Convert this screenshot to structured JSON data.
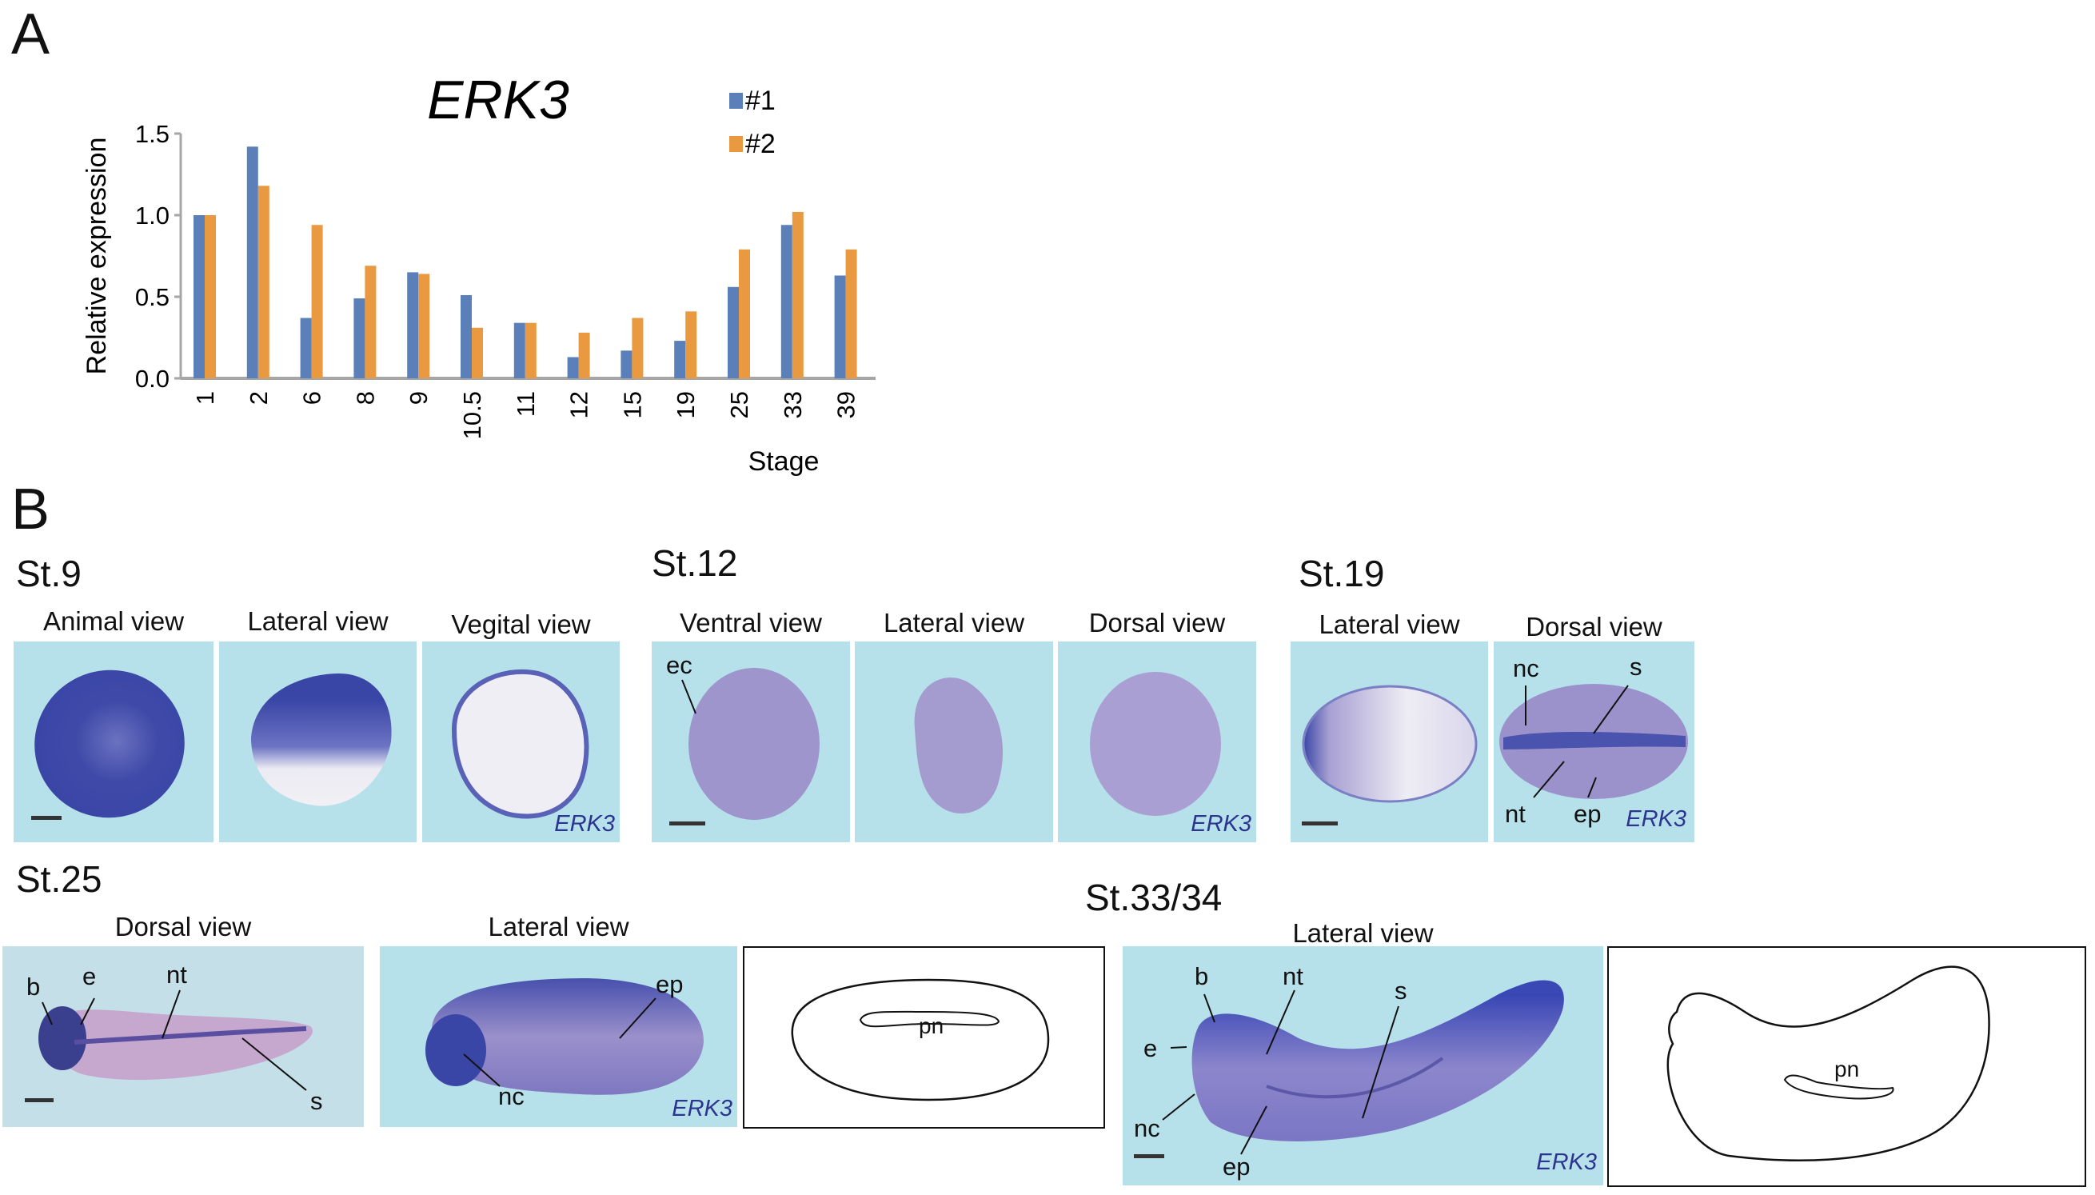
{
  "panel_a": {
    "letter": "A"
  },
  "panel_b": {
    "letter": "B"
  },
  "chart_data": {
    "type": "bar",
    "title": "ERK3",
    "xlabel": "Stage",
    "ylabel": "Relative expression",
    "ylim": [
      0,
      1.5
    ],
    "yticks": [
      "0.0",
      "0.5",
      "1.0",
      "1.5"
    ],
    "categories": [
      "1",
      "2",
      "6",
      "8",
      "9",
      "10.5",
      "11",
      "12",
      "15",
      "19",
      "25",
      "33",
      "39"
    ],
    "series": [
      {
        "name": "#1",
        "color": "#5b80b9",
        "values": [
          1.0,
          1.42,
          0.37,
          0.49,
          0.65,
          0.51,
          0.34,
          0.13,
          0.17,
          0.23,
          0.56,
          0.94,
          0.63
        ]
      },
      {
        "name": "#2",
        "color": "#e99a41",
        "values": [
          1.0,
          1.18,
          0.94,
          0.69,
          0.64,
          0.31,
          0.34,
          0.28,
          0.37,
          0.41,
          0.79,
          1.02,
          0.79
        ]
      }
    ],
    "legend": "top-right",
    "grid": false
  },
  "st9": {
    "stage": "St.9",
    "views": [
      "Animal view",
      "Lateral view",
      "Vegital view"
    ],
    "gene": "ERK3"
  },
  "st12": {
    "stage": "St.12",
    "views": [
      "Ventral view",
      "Lateral view",
      "Dorsal view"
    ],
    "gene": "ERK3",
    "labels": {
      "ec": "ec"
    }
  },
  "st19": {
    "stage": "St.19",
    "views": [
      "Lateral view",
      "Dorsal view"
    ],
    "gene": "ERK3",
    "labels": {
      "nc": "nc",
      "s": "s",
      "nt": "nt",
      "ep": "ep"
    }
  },
  "st25": {
    "stage": "St.25",
    "views": [
      "Dorsal view",
      "Lateral view"
    ],
    "gene": "ERK3",
    "dorsal_labels": {
      "b": "b",
      "e": "e",
      "nt": "nt",
      "s": "s"
    },
    "lateral_labels": {
      "ep": "ep",
      "nc": "nc"
    },
    "diagram_label": "pn"
  },
  "st33": {
    "stage": "St.33/34",
    "view": "Lateral view",
    "gene": "ERK3",
    "labels": {
      "b": "b",
      "nt": "nt",
      "s": "s",
      "e": "e",
      "nc": "nc",
      "ep": "ep"
    },
    "diagram_label": "pn"
  },
  "colors": {
    "background_photo": "#b7e1ea",
    "stain": "#3c4bb0",
    "gene_label": "#2b3590"
  }
}
